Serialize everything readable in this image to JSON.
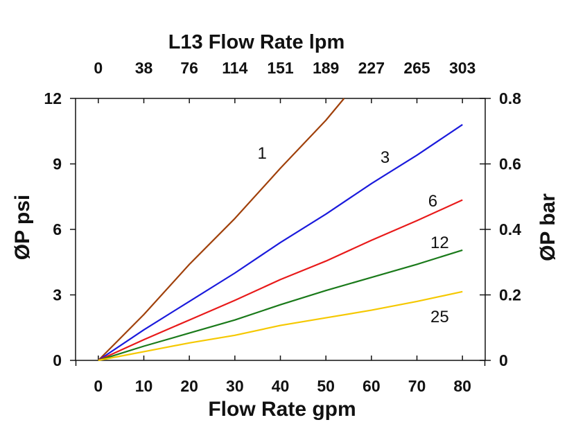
{
  "chart_data": {
    "type": "line",
    "title": "L13 Flow Rate lpm",
    "xlabel": "Flow Rate gpm",
    "ylabel": "ØP psi",
    "ylabel_right": "ØP bar",
    "xlim": [
      -5,
      85
    ],
    "ylim": [
      0,
      12
    ],
    "x_ticks": [
      "0",
      "10",
      "20",
      "30",
      "40",
      "50",
      "60",
      "70",
      "80"
    ],
    "x_tick_values": [
      0,
      10,
      20,
      30,
      40,
      50,
      60,
      70,
      80
    ],
    "top_ticks": [
      "0",
      "38",
      "76",
      "114",
      "151",
      "189",
      "227",
      "265",
      "303"
    ],
    "y_ticks": [
      "0",
      "3",
      "6",
      "9",
      "12"
    ],
    "y_tick_values": [
      0,
      3,
      6,
      9,
      12
    ],
    "right_ticks": [
      "0",
      "0.2",
      "0.4",
      "0.6",
      "0.8"
    ],
    "right_tick_values": [
      0,
      0.2,
      0.4,
      0.6,
      0.8
    ],
    "grid": false,
    "series": [
      {
        "name": "1",
        "color": "#A0400A",
        "x": [
          0,
          10,
          20,
          30,
          40,
          50,
          54
        ],
        "y": [
          0,
          2.1,
          4.4,
          6.5,
          8.8,
          11.0,
          12.0
        ],
        "label_at": [
          36,
          9.5
        ]
      },
      {
        "name": "3",
        "color": "#1A1ADC",
        "x": [
          0,
          10,
          20,
          30,
          40,
          50,
          60,
          70,
          80
        ],
        "y": [
          0,
          1.4,
          2.7,
          4.0,
          5.4,
          6.7,
          8.1,
          9.4,
          10.8
        ],
        "label_at": [
          63,
          9.3
        ]
      },
      {
        "name": "6",
        "color": "#E81A1A",
        "x": [
          0,
          10,
          20,
          30,
          40,
          50,
          60,
          70,
          80
        ],
        "y": [
          0,
          0.95,
          1.85,
          2.75,
          3.7,
          4.55,
          5.5,
          6.4,
          7.35
        ],
        "label_at": [
          73.5,
          7.3
        ]
      },
      {
        "name": "12",
        "color": "#1A7A1A",
        "x": [
          0,
          10,
          20,
          30,
          40,
          50,
          60,
          70,
          80
        ],
        "y": [
          0,
          0.65,
          1.25,
          1.85,
          2.55,
          3.2,
          3.8,
          4.4,
          5.05
        ],
        "label_at": [
          75,
          5.4
        ]
      },
      {
        "name": "25",
        "color": "#F5C800",
        "x": [
          0,
          10,
          20,
          30,
          40,
          50,
          60,
          70,
          80
        ],
        "y": [
          0,
          0.4,
          0.8,
          1.15,
          1.6,
          1.95,
          2.3,
          2.7,
          3.15
        ],
        "label_at": [
          75,
          2.0
        ]
      }
    ]
  }
}
